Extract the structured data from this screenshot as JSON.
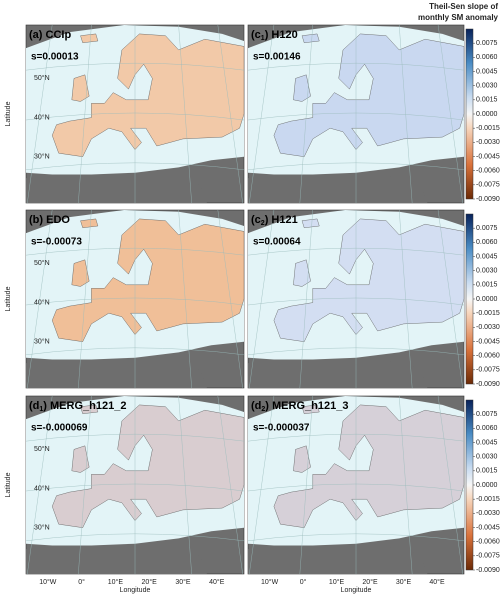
{
  "colorbar": {
    "title": [
      "Theil-Sen slope of",
      "monthly SM anomaly"
    ],
    "lim": [
      -0.009,
      0.009
    ],
    "ticks": [
      {
        "value": 0.0075,
        "label": "0.0075"
      },
      {
        "value": 0.006,
        "label": "0.0060"
      },
      {
        "value": 0.0045,
        "label": "0.0045"
      },
      {
        "value": 0.003,
        "label": "0.0030"
      },
      {
        "value": 0.0015,
        "label": "0.0015"
      },
      {
        "value": 0,
        "label": "0.0000"
      },
      {
        "value": -0.0015,
        "label": "-0.0015"
      },
      {
        "value": -0.003,
        "label": "-0.0030"
      },
      {
        "value": -0.0045,
        "label": "-0.0045"
      },
      {
        "value": -0.006,
        "label": "-0.0060"
      },
      {
        "value": -0.0075,
        "label": "-0.0075"
      },
      {
        "value": -0.009,
        "label": "-0.0090"
      }
    ]
  },
  "axes": {
    "ylabel": "Latitude",
    "xlabel": "Longitude",
    "lat_ticks": [
      "50°N",
      "40°N",
      "30°N"
    ],
    "lon_ticks": [
      "10°W",
      "0°",
      "10°E",
      "20°E",
      "30°E",
      "40°E"
    ]
  },
  "panels": [
    {
      "prefix": "(a) CCIp",
      "sub": "",
      "suffix": "",
      "slope": "s=0.00013",
      "land_color": "#f2c9a8"
    },
    {
      "prefix": "(c",
      "sub": "1",
      "suffix": ") H120",
      "slope": "s=0.00146",
      "land_color": "#c9d8f0"
    },
    {
      "prefix": "(b) EDO",
      "sub": "",
      "suffix": "",
      "slope": "s=-0.00073",
      "land_color": "#f0bf98"
    },
    {
      "prefix": "(c",
      "sub": "2",
      "suffix": ") H121",
      "slope": "s=0.00064",
      "land_color": "#d3def2"
    },
    {
      "prefix": "(d",
      "sub": "1",
      "suffix": ") MERG_h121_2",
      "slope": "s=-0.000069",
      "land_color": "#d9cdd0"
    },
    {
      "prefix": "(d",
      "sub": "2",
      "suffix": ") MERG_h121_3",
      "slope": "s=-0.000037",
      "land_color": "#d6d0d8"
    }
  ]
}
